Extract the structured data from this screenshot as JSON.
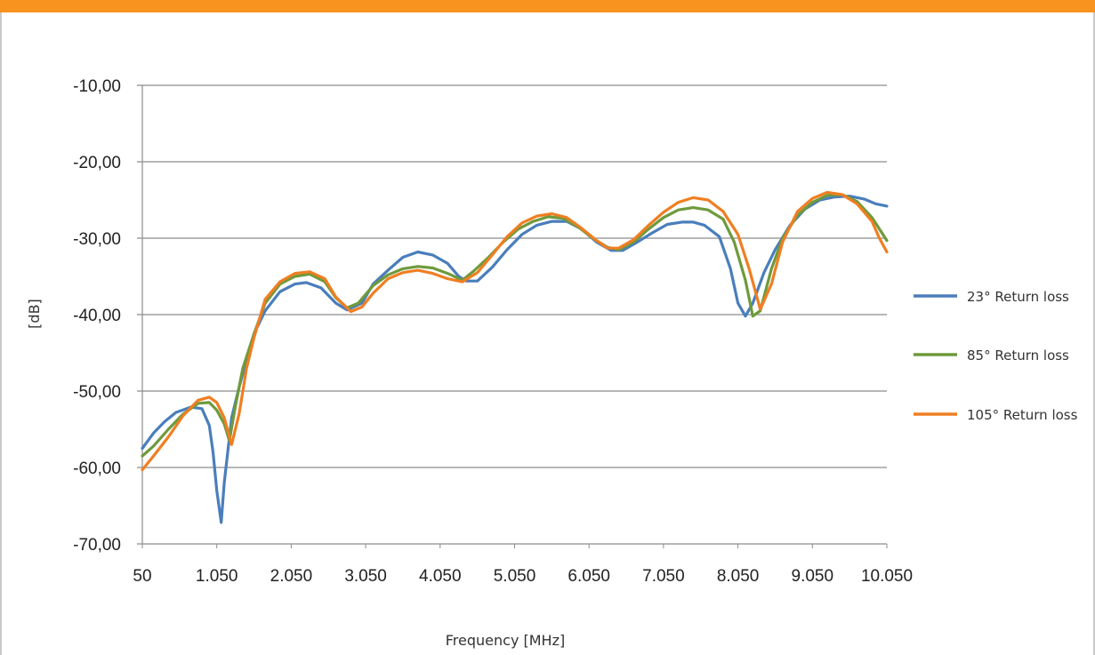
{
  "page": {
    "accent": "#f7931e"
  },
  "chart_data": {
    "type": "line",
    "xlabel": "Frequency [MHz]",
    "ylabel": "[dB]",
    "xlim": [
      50,
      10050
    ],
    "ylim": [
      -70,
      -10
    ],
    "grid": true,
    "legend_position": "right",
    "x_tick_labels": [
      "50",
      "1.050",
      "2.050",
      "3.050",
      "4.050",
      "5.050",
      "6.050",
      "7.050",
      "8.050",
      "9.050",
      "10.050"
    ],
    "y_tick_labels": [
      "-10,00",
      "-20,00",
      "-30,00",
      "-40,00",
      "-50,00",
      "-60,00",
      "-70,00"
    ],
    "series": [
      {
        "name": "23° Return loss",
        "color": "#4a7ebb",
        "points": [
          [
            50,
            -57.5
          ],
          [
            200,
            -55.5
          ],
          [
            350,
            -54
          ],
          [
            500,
            -52.8
          ],
          [
            700,
            -52.1
          ],
          [
            850,
            -52.3
          ],
          [
            950,
            -54.5
          ],
          [
            1000,
            -58
          ],
          [
            1050,
            -63
          ],
          [
            1110,
            -67.2
          ],
          [
            1150,
            -62
          ],
          [
            1250,
            -53.5
          ],
          [
            1350,
            -49.5
          ],
          [
            1550,
            -42.5
          ],
          [
            1700,
            -39.5
          ],
          [
            1900,
            -37
          ],
          [
            2100,
            -36
          ],
          [
            2250,
            -35.8
          ],
          [
            2450,
            -36.5
          ],
          [
            2650,
            -38.5
          ],
          [
            2800,
            -39.4
          ],
          [
            3000,
            -38.5
          ],
          [
            3150,
            -36
          ],
          [
            3350,
            -34.2
          ],
          [
            3550,
            -32.5
          ],
          [
            3750,
            -31.8
          ],
          [
            3950,
            -32.2
          ],
          [
            4150,
            -33.3
          ],
          [
            4300,
            -35
          ],
          [
            4400,
            -35.6
          ],
          [
            4550,
            -35.6
          ],
          [
            4750,
            -33.8
          ],
          [
            4950,
            -31.5
          ],
          [
            5150,
            -29.5
          ],
          [
            5350,
            -28.3
          ],
          [
            5550,
            -27.8
          ],
          [
            5750,
            -27.8
          ],
          [
            5950,
            -28.8
          ],
          [
            6150,
            -30.5
          ],
          [
            6350,
            -31.6
          ],
          [
            6500,
            -31.6
          ],
          [
            6700,
            -30.5
          ],
          [
            6900,
            -29.3
          ],
          [
            7100,
            -28.2
          ],
          [
            7300,
            -27.9
          ],
          [
            7450,
            -27.9
          ],
          [
            7600,
            -28.3
          ],
          [
            7800,
            -29.8
          ],
          [
            7950,
            -34
          ],
          [
            8050,
            -38.5
          ],
          [
            8150,
            -40.2
          ],
          [
            8250,
            -38.5
          ],
          [
            8400,
            -34.5
          ],
          [
            8550,
            -31.5
          ],
          [
            8750,
            -28.3
          ],
          [
            8950,
            -26.2
          ],
          [
            9150,
            -25
          ],
          [
            9350,
            -24.6
          ],
          [
            9550,
            -24.5
          ],
          [
            9750,
            -24.9
          ],
          [
            9900,
            -25.5
          ],
          [
            10050,
            -25.8
          ]
        ]
      },
      {
        "name": "85° Return loss",
        "color": "#6e9a3c",
        "points": [
          [
            50,
            -58.5
          ],
          [
            200,
            -57.2
          ],
          [
            400,
            -55
          ],
          [
            600,
            -53
          ],
          [
            800,
            -51.6
          ],
          [
            950,
            -51.5
          ],
          [
            1050,
            -52.5
          ],
          [
            1150,
            -54.3
          ],
          [
            1220,
            -56.5
          ],
          [
            1300,
            -52
          ],
          [
            1400,
            -47
          ],
          [
            1550,
            -42.5
          ],
          [
            1700,
            -38.5
          ],
          [
            1900,
            -36
          ],
          [
            2100,
            -35
          ],
          [
            2300,
            -34.7
          ],
          [
            2500,
            -35.7
          ],
          [
            2650,
            -37.8
          ],
          [
            2800,
            -39.1
          ],
          [
            2950,
            -38.5
          ],
          [
            3150,
            -36.2
          ],
          [
            3350,
            -34.8
          ],
          [
            3550,
            -34
          ],
          [
            3750,
            -33.7
          ],
          [
            3950,
            -33.9
          ],
          [
            4150,
            -34.6
          ],
          [
            4350,
            -35.5
          ],
          [
            4500,
            -34.3
          ],
          [
            4700,
            -32.5
          ],
          [
            4900,
            -30.5
          ],
          [
            5100,
            -28.8
          ],
          [
            5300,
            -27.8
          ],
          [
            5500,
            -27.2
          ],
          [
            5700,
            -27.4
          ],
          [
            5900,
            -28.5
          ],
          [
            6100,
            -30
          ],
          [
            6300,
            -31.2
          ],
          [
            6450,
            -31.5
          ],
          [
            6650,
            -30.5
          ],
          [
            6850,
            -28.8
          ],
          [
            7050,
            -27.3
          ],
          [
            7250,
            -26.3
          ],
          [
            7450,
            -26
          ],
          [
            7650,
            -26.3
          ],
          [
            7850,
            -27.5
          ],
          [
            8000,
            -30.5
          ],
          [
            8150,
            -35.5
          ],
          [
            8250,
            -40.2
          ],
          [
            8350,
            -39.5
          ],
          [
            8500,
            -34
          ],
          [
            8650,
            -30
          ],
          [
            8850,
            -27
          ],
          [
            9050,
            -25.3
          ],
          [
            9250,
            -24.4
          ],
          [
            9450,
            -24.3
          ],
          [
            9650,
            -25.2
          ],
          [
            9850,
            -27.3
          ],
          [
            10050,
            -30.3
          ]
        ]
      },
      {
        "name": "105° Return loss",
        "color": "#f07e22",
        "points": [
          [
            50,
            -60.3
          ],
          [
            200,
            -58.5
          ],
          [
            400,
            -56
          ],
          [
            600,
            -53.2
          ],
          [
            800,
            -51.2
          ],
          [
            950,
            -50.8
          ],
          [
            1050,
            -51.5
          ],
          [
            1150,
            -53.5
          ],
          [
            1250,
            -57
          ],
          [
            1350,
            -53
          ],
          [
            1450,
            -47
          ],
          [
            1550,
            -43
          ],
          [
            1700,
            -38
          ],
          [
            1900,
            -35.7
          ],
          [
            2100,
            -34.6
          ],
          [
            2300,
            -34.4
          ],
          [
            2500,
            -35.3
          ],
          [
            2650,
            -37.7
          ],
          [
            2850,
            -39.6
          ],
          [
            3000,
            -39
          ],
          [
            3150,
            -37.2
          ],
          [
            3350,
            -35.3
          ],
          [
            3550,
            -34.5
          ],
          [
            3750,
            -34.2
          ],
          [
            3950,
            -34.6
          ],
          [
            4150,
            -35.3
          ],
          [
            4350,
            -35.7
          ],
          [
            4550,
            -34.5
          ],
          [
            4750,
            -32.2
          ],
          [
            4950,
            -29.8
          ],
          [
            5150,
            -28
          ],
          [
            5350,
            -27.1
          ],
          [
            5550,
            -26.8
          ],
          [
            5750,
            -27.3
          ],
          [
            5950,
            -28.7
          ],
          [
            6150,
            -30.3
          ],
          [
            6300,
            -31.3
          ],
          [
            6450,
            -31.3
          ],
          [
            6650,
            -30.2
          ],
          [
            6850,
            -28.3
          ],
          [
            7050,
            -26.6
          ],
          [
            7250,
            -25.3
          ],
          [
            7450,
            -24.7
          ],
          [
            7650,
            -25
          ],
          [
            7850,
            -26.5
          ],
          [
            8050,
            -29.5
          ],
          [
            8200,
            -34
          ],
          [
            8350,
            -39.3
          ],
          [
            8500,
            -36
          ],
          [
            8650,
            -30.5
          ],
          [
            8850,
            -26.5
          ],
          [
            9050,
            -24.8
          ],
          [
            9250,
            -24
          ],
          [
            9450,
            -24.3
          ],
          [
            9650,
            -25.5
          ],
          [
            9850,
            -27.8
          ],
          [
            9950,
            -30
          ],
          [
            10050,
            -31.8
          ]
        ]
      }
    ]
  }
}
